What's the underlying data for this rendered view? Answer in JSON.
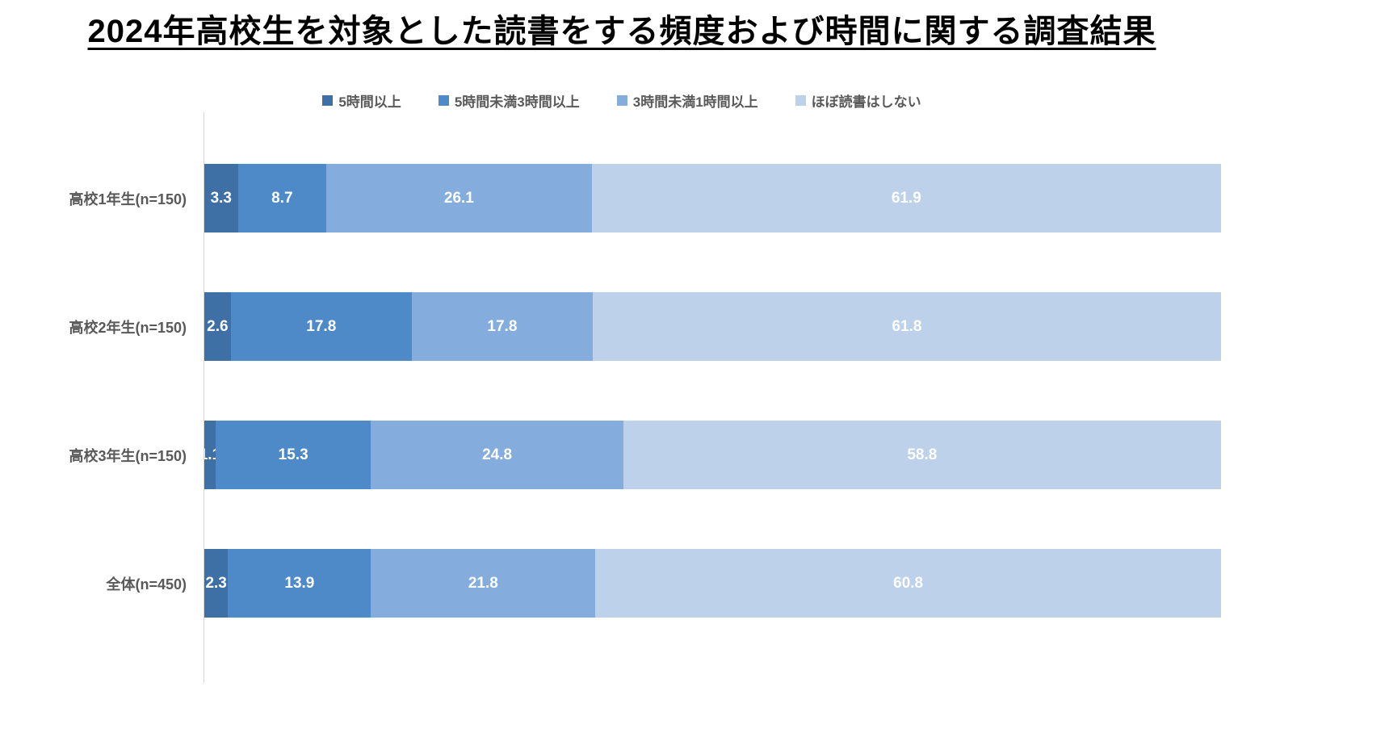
{
  "chart": {
    "title": "2024年高校生を対象とした読書をする頻度および時間に関する調査結果"
  },
  "chart_data": {
    "type": "bar",
    "orientation": "horizontal",
    "stacked": true,
    "unit": "percent",
    "title": "2024年高校生を対象とした読書をする頻度および時間に関する調査結果",
    "xlabel": "",
    "ylabel": "",
    "grid": false,
    "legend_position": "top",
    "value_labels": "inside-white",
    "categories": [
      "高校1年生(n=150)",
      "高校2年生(n=150)",
      "高校3年生(n=150)",
      "全体(n=450)"
    ],
    "series": [
      {
        "name": "5時間以上",
        "color": "#3e6fa5",
        "values": [
          3.3,
          2.6,
          1.1,
          2.3
        ],
        "labels": [
          "3.3",
          "2.6",
          "1.1",
          "2.3"
        ]
      },
      {
        "name": "5時間未満3時間以上",
        "color": "#4e8ac8",
        "values": [
          8.7,
          17.8,
          15.3,
          13.9
        ],
        "labels": [
          "8.7",
          "17.8",
          "15.3",
          "13.9"
        ]
      },
      {
        "name": "3時間未満1時間以上",
        "color": "#84addd",
        "values": [
          26.1,
          17.8,
          24.8,
          21.8
        ],
        "labels": [
          "26.1",
          "17.8",
          "24.8",
          "21.8"
        ]
      },
      {
        "name": "ほぼ読書はしない",
        "color": "#bdd1eb",
        "values": [
          61.9,
          61.8,
          58.8,
          60.8
        ],
        "labels": [
          "61.9",
          "61.8",
          "58.8",
          "60.8"
        ]
      }
    ]
  },
  "colors": {
    "category_text": "#595959",
    "legend_text": "#595959",
    "data_label_text": "#ffffff",
    "axis_line": "#d6d6d6",
    "title_text": "#000000"
  }
}
